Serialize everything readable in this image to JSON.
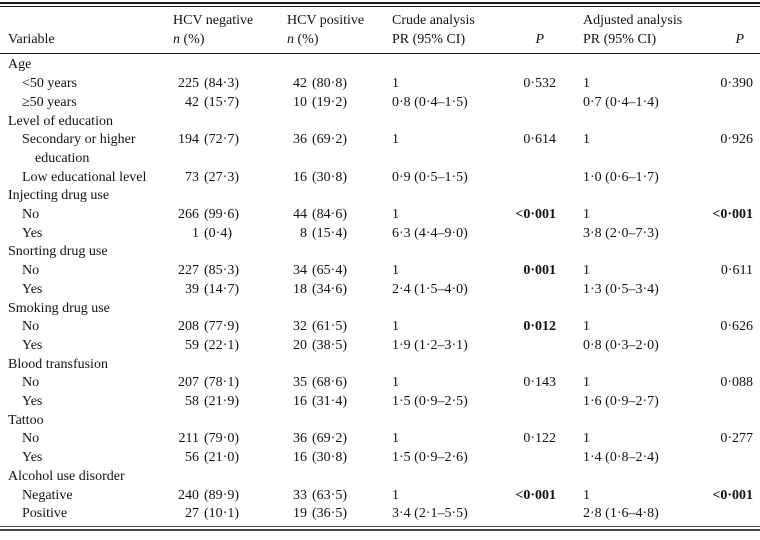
{
  "page": {
    "background": "#ffffff",
    "text_color": "#121212",
    "rule_color": "#1b1b1b"
  },
  "table": {
    "columns": [
      {
        "id": "variable",
        "top": "",
        "italic": "",
        "rest": "Variable"
      },
      {
        "id": "hcv-negative",
        "top": "HCV negative",
        "italic": "n",
        "rest": " (%)"
      },
      {
        "id": "hcv-positive",
        "top": "HCV positive",
        "italic": "n",
        "rest": " (%)"
      },
      {
        "id": "crude-analysis",
        "top": "Crude analysis",
        "italic": "",
        "rest": "PR (95% CI)"
      },
      {
        "id": "p-crude",
        "top": "",
        "italic": "P",
        "rest": ""
      },
      {
        "id": "adjusted-analysis",
        "top": "Adjusted analysis",
        "italic": "",
        "rest": "PR (95% CI)"
      },
      {
        "id": "p-adjusted",
        "top": "",
        "italic": "P",
        "rest": ""
      }
    ],
    "sections": [
      {
        "group": "Age",
        "rows": [
          {
            "label": "<50 years",
            "neg_n": "225",
            "neg_pct": "(84·3)",
            "pos_n": "42",
            "pos_pct": "(80·8)",
            "crude_pr": "1",
            "crude_p": "0·532",
            "crude_p_bold": false,
            "adj_pr": "1",
            "adj_p": "0·390",
            "adj_p_bold": false
          },
          {
            "label": "≥50 years",
            "neg_n": "42",
            "neg_pct": "(15·7)",
            "pos_n": "10",
            "pos_pct": "(19·2)",
            "crude_pr": "0·8 (0·4–1·5)",
            "crude_p": "",
            "crude_p_bold": false,
            "adj_pr": "0·7 (0·4–1·4)",
            "adj_p": "",
            "adj_p_bold": false
          }
        ]
      },
      {
        "group": "Level of education",
        "rows": [
          {
            "label": "Secondary or higher education",
            "neg_n": "194",
            "neg_pct": "(72·7)",
            "pos_n": "36",
            "pos_pct": "(69·2)",
            "crude_pr": "1",
            "crude_p": "0·614",
            "crude_p_bold": false,
            "adj_pr": "1",
            "adj_p": "0·926",
            "adj_p_bold": false
          },
          {
            "label": "Low educational level",
            "neg_n": "73",
            "neg_pct": "(27·3)",
            "pos_n": "16",
            "pos_pct": "(30·8)",
            "crude_pr": "0·9 (0·5–1·5)",
            "crude_p": "",
            "crude_p_bold": false,
            "adj_pr": "1·0 (0·6–1·7)",
            "adj_p": "",
            "adj_p_bold": false
          }
        ]
      },
      {
        "group": "Injecting drug use",
        "rows": [
          {
            "label": "No",
            "neg_n": "266",
            "neg_pct": "(99·6)",
            "pos_n": "44",
            "pos_pct": "(84·6)",
            "crude_pr": "1",
            "crude_p": "<0·001",
            "crude_p_bold": true,
            "adj_pr": "1",
            "adj_p": "<0·001",
            "adj_p_bold": true
          },
          {
            "label": "Yes",
            "neg_n": "1",
            "neg_pct": "(0·4)",
            "pos_n": "8",
            "pos_pct": "(15·4)",
            "crude_pr": "6·3 (4·4–9·0)",
            "crude_p": "",
            "crude_p_bold": false,
            "adj_pr": "3·8 (2·0–7·3)",
            "adj_p": "",
            "adj_p_bold": false
          }
        ]
      },
      {
        "group": "Snorting drug use",
        "rows": [
          {
            "label": "No",
            "neg_n": "227",
            "neg_pct": "(85·3)",
            "pos_n": "34",
            "pos_pct": "(65·4)",
            "crude_pr": "1",
            "crude_p": "0·001",
            "crude_p_bold": true,
            "adj_pr": "1",
            "adj_p": "0·611",
            "adj_p_bold": false
          },
          {
            "label": "Yes",
            "neg_n": "39",
            "neg_pct": "(14·7)",
            "pos_n": "18",
            "pos_pct": "(34·6)",
            "crude_pr": "2·4 (1·5–4·0)",
            "crude_p": "",
            "crude_p_bold": false,
            "adj_pr": "1·3 (0·5–3·4)",
            "adj_p": "",
            "adj_p_bold": false
          }
        ]
      },
      {
        "group": "Smoking drug use",
        "rows": [
          {
            "label": "No",
            "neg_n": "208",
            "neg_pct": "(77·9)",
            "pos_n": "32",
            "pos_pct": "(61·5)",
            "crude_pr": "1",
            "crude_p": "0·012",
            "crude_p_bold": true,
            "adj_pr": "1",
            "adj_p": "0·626",
            "adj_p_bold": false
          },
          {
            "label": "Yes",
            "neg_n": "59",
            "neg_pct": "(22·1)",
            "pos_n": "20",
            "pos_pct": "(38·5)",
            "crude_pr": "1·9 (1·2–3·1)",
            "crude_p": "",
            "crude_p_bold": false,
            "adj_pr": "0·8 (0·3–2·0)",
            "adj_p": "",
            "adj_p_bold": false
          }
        ]
      },
      {
        "group": "Blood transfusion",
        "rows": [
          {
            "label": "No",
            "neg_n": "207",
            "neg_pct": "(78·1)",
            "pos_n": "35",
            "pos_pct": "(68·6)",
            "crude_pr": "1",
            "crude_p": "0·143",
            "crude_p_bold": false,
            "adj_pr": "1",
            "adj_p": "0·088",
            "adj_p_bold": false
          },
          {
            "label": "Yes",
            "neg_n": "58",
            "neg_pct": "(21·9)",
            "pos_n": "16",
            "pos_pct": "(31·4)",
            "crude_pr": "1·5 (0·9–2·5)",
            "crude_p": "",
            "crude_p_bold": false,
            "adj_pr": "1·6 (0·9–2·7)",
            "adj_p": "",
            "adj_p_bold": false
          }
        ]
      },
      {
        "group": "Tattoo",
        "rows": [
          {
            "label": "No",
            "neg_n": "211",
            "neg_pct": "(79·0)",
            "pos_n": "36",
            "pos_pct": "(69·2)",
            "crude_pr": "1",
            "crude_p": "0·122",
            "crude_p_bold": false,
            "adj_pr": "1",
            "adj_p": "0·277",
            "adj_p_bold": false
          },
          {
            "label": "Yes",
            "neg_n": "56",
            "neg_pct": "(21·0)",
            "pos_n": "16",
            "pos_pct": "(30·8)",
            "crude_pr": "1·5 (0·9–2·6)",
            "crude_p": "",
            "crude_p_bold": false,
            "adj_pr": "1·4 (0·8–2·4)",
            "adj_p": "",
            "adj_p_bold": false
          }
        ]
      },
      {
        "group": "Alcohol use disorder",
        "rows": [
          {
            "label": "Negative",
            "neg_n": "240",
            "neg_pct": "(89·9)",
            "pos_n": "33",
            "pos_pct": "(63·5)",
            "crude_pr": "1",
            "crude_p": "<0·001",
            "crude_p_bold": true,
            "adj_pr": "1",
            "adj_p": "<0·001",
            "adj_p_bold": true
          },
          {
            "label": "Positive",
            "neg_n": "27",
            "neg_pct": "(10·1)",
            "pos_n": "19",
            "pos_pct": "(36·5)",
            "crude_pr": "3·4 (2·1–5·5)",
            "crude_p": "",
            "crude_p_bold": false,
            "adj_pr": "2·8 (1·6–4·8)",
            "adj_p": "",
            "adj_p_bold": false
          }
        ]
      }
    ]
  }
}
